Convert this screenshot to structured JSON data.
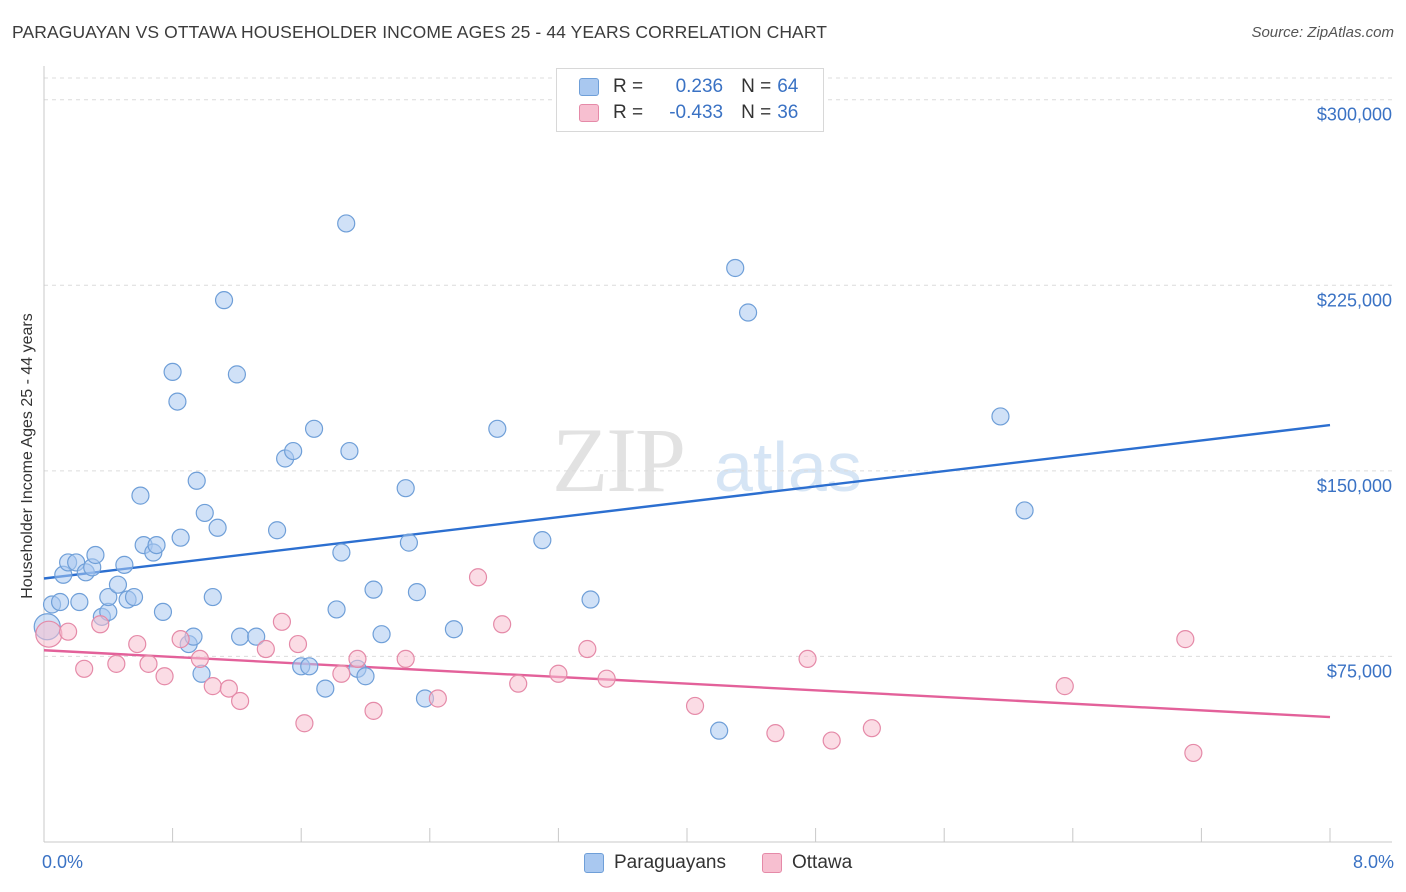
{
  "title": "PARAGUAYAN VS OTTAWA HOUSEHOLDER INCOME AGES 25 - 44 YEARS CORRELATION CHART",
  "source": "Source: ZipAtlas.com",
  "watermark": {
    "zip": "ZIP",
    "atlas": "atlas"
  },
  "legend": {
    "rows": [
      {
        "r_label": "R =",
        "r_value": "0.236",
        "n_label": "N =",
        "n_value": "64",
        "color": "#a9c8f0",
        "border": "#6f9fd8"
      },
      {
        "r_label": "R =",
        "r_value": "-0.433",
        "n_label": "N =",
        "n_value": "36",
        "color": "#f7bfd0",
        "border": "#e58aa8"
      }
    ]
  },
  "bottom_legend": [
    {
      "label": "Paraguayans",
      "color": "#a9c8f0",
      "border": "#6f9fd8"
    },
    {
      "label": "Ottawa",
      "color": "#f7bfd0",
      "border": "#e58aa8"
    }
  ],
  "chart_data": {
    "type": "scatter",
    "title": "PARAGUAYAN VS OTTAWA HOUSEHOLDER INCOME AGES 25 - 44 YEARS CORRELATION CHART",
    "xlabel": "",
    "ylabel": "Householder Income Ages 25 - 44 years",
    "xlim": [
      0,
      8
    ],
    "ylim": [
      0,
      310000
    ],
    "x_tick_labels": [
      "0.0%",
      "8.0%"
    ],
    "y_ticks": [
      75000,
      150000,
      225000,
      300000
    ],
    "y_tick_labels": [
      "$75,000",
      "$150,000",
      "$225,000",
      "$300,000"
    ],
    "grid": "horizontal dashed",
    "legend_position": "top-center",
    "colors": {
      "paraguayans": "#4f86d4",
      "ottawa": "#e86e98",
      "trend_blue": "#2c6fd0",
      "trend_pink": "#e3619a"
    },
    "series": [
      {
        "name": "Paraguayans",
        "color": "#a9c8f0",
        "trend": {
          "x": [
            0,
            8
          ],
          "y": [
            106500,
            168500
          ]
        },
        "points": [
          [
            0.02,
            87000
          ],
          [
            0.05,
            96000
          ],
          [
            0.1,
            97000
          ],
          [
            0.12,
            108000
          ],
          [
            0.15,
            113000
          ],
          [
            0.2,
            113000
          ],
          [
            0.22,
            97000
          ],
          [
            0.26,
            109000
          ],
          [
            0.3,
            111000
          ],
          [
            0.32,
            116000
          ],
          [
            0.36,
            91000
          ],
          [
            0.4,
            93000
          ],
          [
            0.4,
            99000
          ],
          [
            0.46,
            104000
          ],
          [
            0.5,
            112000
          ],
          [
            0.52,
            98000
          ],
          [
            0.56,
            99000
          ],
          [
            0.6,
            140000
          ],
          [
            0.62,
            120000
          ],
          [
            0.68,
            117000
          ],
          [
            0.7,
            120000
          ],
          [
            0.74,
            93000
          ],
          [
            0.8,
            190000
          ],
          [
            0.83,
            178000
          ],
          [
            0.85,
            123000
          ],
          [
            0.9,
            80000
          ],
          [
            0.93,
            83000
          ],
          [
            0.95,
            146000
          ],
          [
            0.98,
            68000
          ],
          [
            1.0,
            133000
          ],
          [
            1.05,
            99000
          ],
          [
            1.08,
            127000
          ],
          [
            1.12,
            219000
          ],
          [
            1.2,
            189000
          ],
          [
            1.22,
            83000
          ],
          [
            1.32,
            83000
          ],
          [
            1.45,
            126000
          ],
          [
            1.5,
            155000
          ],
          [
            1.55,
            158000
          ],
          [
            1.6,
            71000
          ],
          [
            1.65,
            71000
          ],
          [
            1.68,
            167000
          ],
          [
            1.75,
            62000
          ],
          [
            1.82,
            94000
          ],
          [
            1.85,
            117000
          ],
          [
            1.88,
            250000
          ],
          [
            1.9,
            158000
          ],
          [
            1.95,
            70000
          ],
          [
            2.0,
            67000
          ],
          [
            2.05,
            102000
          ],
          [
            2.1,
            84000
          ],
          [
            2.25,
            143000
          ],
          [
            2.27,
            121000
          ],
          [
            2.32,
            101000
          ],
          [
            2.37,
            58000
          ],
          [
            2.55,
            86000
          ],
          [
            2.82,
            167000
          ],
          [
            3.1,
            122000
          ],
          [
            3.4,
            98000
          ],
          [
            4.2,
            45000
          ],
          [
            4.3,
            232000
          ],
          [
            4.38,
            214000
          ],
          [
            5.95,
            172000
          ],
          [
            6.1,
            134000
          ]
        ]
      },
      {
        "name": "Ottawa",
        "color": "#f7bfd0",
        "trend": {
          "x": [
            0,
            8
          ],
          "y": [
            77500,
            50500
          ]
        },
        "points": [
          [
            0.03,
            84000
          ],
          [
            0.15,
            85000
          ],
          [
            0.25,
            70000
          ],
          [
            0.35,
            88000
          ],
          [
            0.45,
            72000
          ],
          [
            0.58,
            80000
          ],
          [
            0.65,
            72000
          ],
          [
            0.75,
            67000
          ],
          [
            0.85,
            82000
          ],
          [
            0.97,
            74000
          ],
          [
            1.05,
            63000
          ],
          [
            1.15,
            62000
          ],
          [
            1.22,
            57000
          ],
          [
            1.38,
            78000
          ],
          [
            1.48,
            89000
          ],
          [
            1.58,
            80000
          ],
          [
            1.62,
            48000
          ],
          [
            1.85,
            68000
          ],
          [
            1.95,
            74000
          ],
          [
            2.05,
            53000
          ],
          [
            2.25,
            74000
          ],
          [
            2.45,
            58000
          ],
          [
            2.7,
            107000
          ],
          [
            2.85,
            88000
          ],
          [
            2.95,
            64000
          ],
          [
            3.2,
            68000
          ],
          [
            3.38,
            78000
          ],
          [
            3.5,
            66000
          ],
          [
            4.05,
            55000
          ],
          [
            4.55,
            44000
          ],
          [
            4.75,
            74000
          ],
          [
            4.9,
            41000
          ],
          [
            5.15,
            46000
          ],
          [
            6.35,
            63000
          ],
          [
            7.1,
            82000
          ],
          [
            7.15,
            36000
          ]
        ]
      }
    ]
  }
}
